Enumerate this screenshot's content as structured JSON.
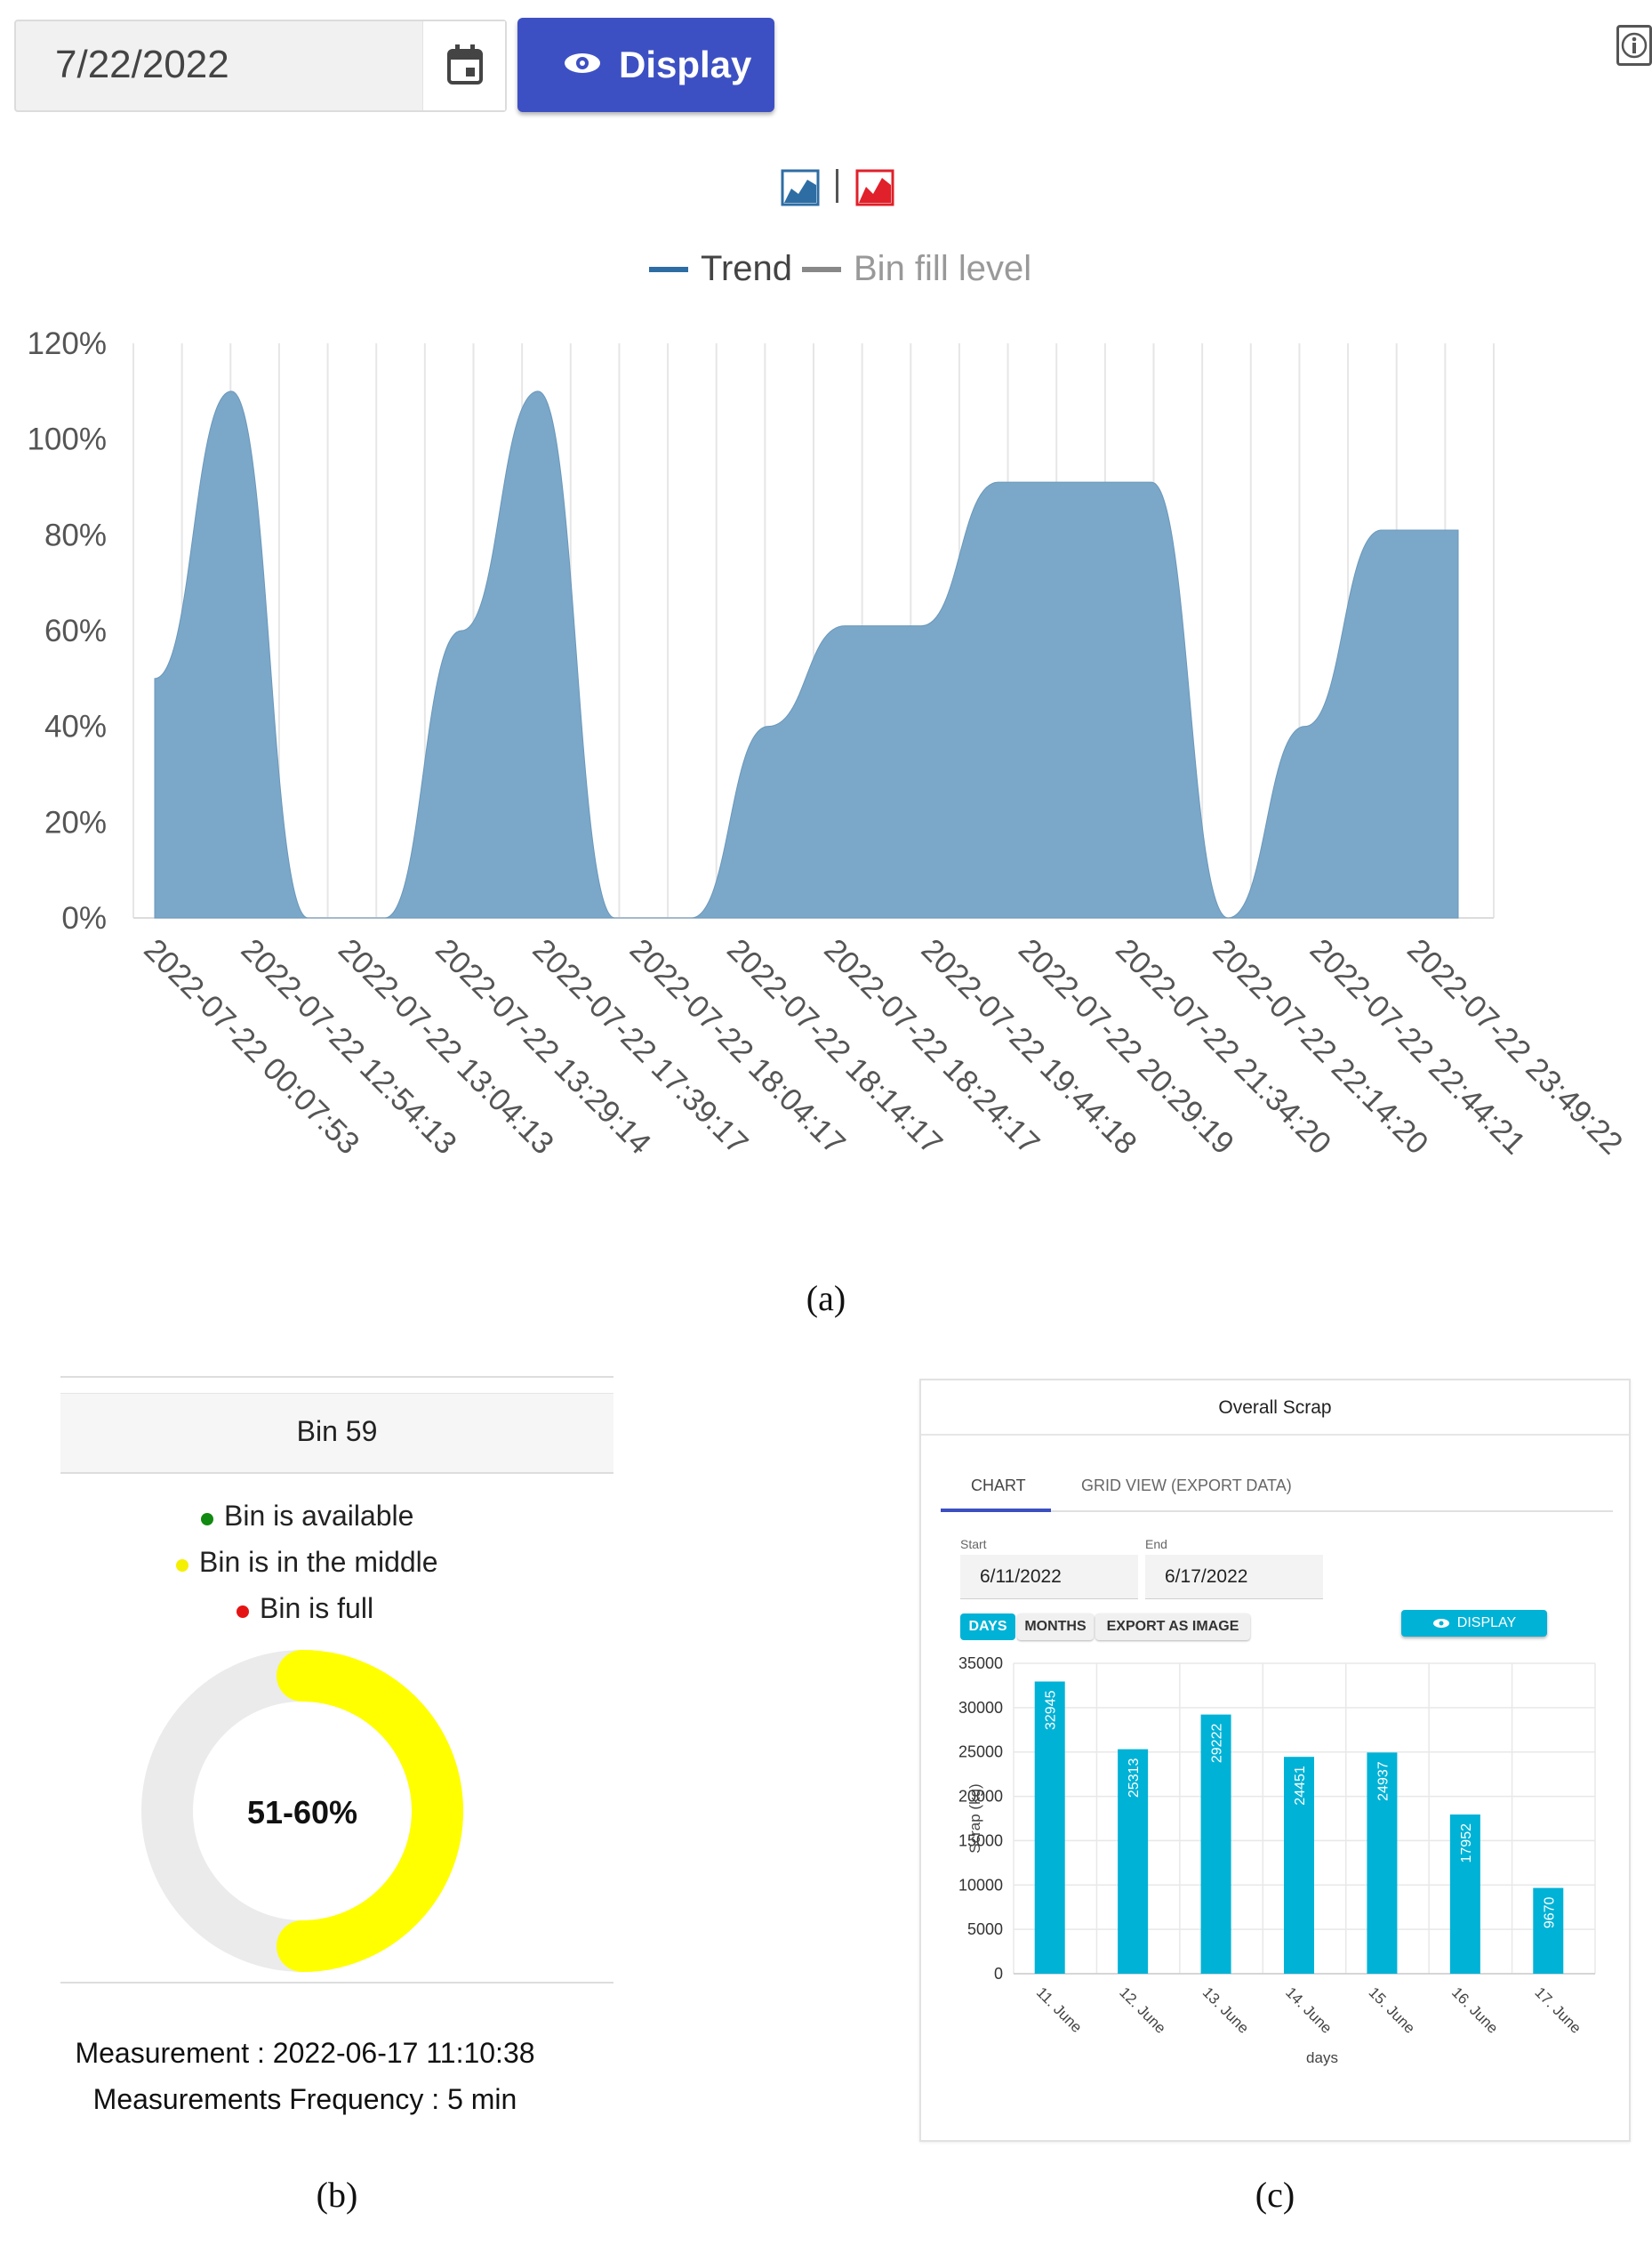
{
  "panel_a": {
    "date_value": "7/22/2022",
    "display_button": "Display",
    "legend": [
      {
        "name": "Trend",
        "color": "#2e6da4"
      },
      {
        "name": "Bin fill level",
        "color": "#888888"
      }
    ],
    "caption": "(a)",
    "chart_data": {
      "type": "area",
      "y_ticks": [
        "120%",
        "100%",
        "80%",
        "60%",
        "40%",
        "20%",
        "0%"
      ],
      "ylim": [
        0,
        120
      ],
      "x_labels": [
        "2022-07-22 00:07:53",
        "2022-07-22 12:54:13",
        "2022-07-22 13:04:13",
        "2022-07-22 13:29:14",
        "2022-07-22 17:39:17",
        "2022-07-22 18:04:17",
        "2022-07-22 18:14:17",
        "2022-07-22 18:24:17",
        "2022-07-22 19:44:18",
        "2022-07-22 20:29:19",
        "2022-07-22 21:34:20",
        "2022-07-22 22:14:20",
        "2022-07-22 22:44:21",
        "2022-07-22 23:49:22"
      ],
      "fill_color": "#7ba7c8",
      "series": [
        {
          "values": [
            50,
            110,
            0,
            0,
            60,
            110,
            0,
            0,
            40,
            61,
            61,
            91,
            91,
            91,
            0,
            40,
            81,
            81
          ]
        }
      ]
    }
  },
  "panel_b": {
    "title": "Bin 59",
    "legend": [
      {
        "label": "Bin is available",
        "color": "#108a10"
      },
      {
        "label": "Bin is in the middle",
        "color": "#f5f000"
      },
      {
        "label": "Bin is full",
        "color": "#e51414"
      }
    ],
    "gauge_label": "51-60%",
    "gauge_fraction": 0.5,
    "gauge_color": "#ffff00",
    "gauge_track_color": "#ebebeb",
    "measurement": "Measurement : 2022-06-17 11:10:38",
    "frequency": "Measurements Frequency : 5 min",
    "caption": "(b)"
  },
  "panel_c": {
    "header": "Overall Scrap",
    "tabs": [
      "CHART",
      "GRID VIEW (EXPORT DATA)"
    ],
    "start_label": "Start",
    "start_value": "6/11/2022",
    "end_label": "End",
    "end_value": "6/17/2022",
    "buttons": [
      "DAYS",
      "MONTHS",
      "EXPORT AS IMAGE"
    ],
    "display_button": "DISPLAY",
    "caption": "(c)",
    "chart_data": {
      "type": "bar",
      "categories": [
        "11. June",
        "12. June",
        "13. June",
        "14. June",
        "15. June",
        "16. June",
        "17. June"
      ],
      "values": [
        32945,
        25313,
        29222,
        24451,
        24937,
        17952,
        9670
      ],
      "xlabel": "days",
      "ylabel": "Scrap (kg)",
      "ylim": [
        0,
        35000
      ],
      "y_ticks": [
        35000,
        30000,
        25000,
        20000,
        15000,
        10000,
        5000,
        0
      ],
      "bar_color": "#00b2d6",
      "grid": true
    }
  }
}
